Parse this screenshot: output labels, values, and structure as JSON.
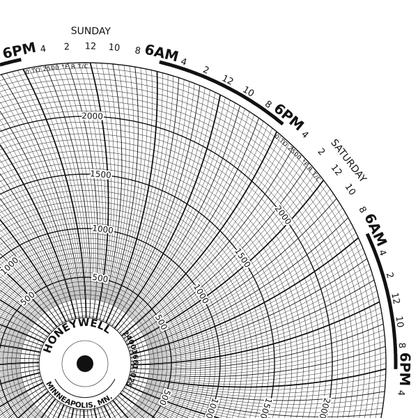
{
  "chart_paper": {
    "brand": "HONEYWELL",
    "part_number": "24001661-025",
    "location": "MINNEAPOLIS, MN.",
    "range_label": "0 TO 2500 °F R T/C",
    "days": [
      "SUNDAY",
      "SATURDAY"
    ],
    "hour_labels": [
      "6PM",
      "4",
      "2",
      "12",
      "10",
      "8",
      "6AM",
      "4",
      "2",
      "12",
      "10",
      "8",
      "6PM",
      "4",
      "2",
      "12",
      "10",
      "8",
      "6AM",
      "4",
      "2",
      "12",
      "10",
      "8",
      "6PM",
      "4"
    ],
    "scale_labels": [
      "500",
      "1000",
      "1500",
      "2000"
    ],
    "scale_range": [
      0,
      2500
    ],
    "major_division": 500,
    "minor_division": 50,
    "colors": {
      "ink": "#111111",
      "paper": "#ffffff"
    }
  }
}
